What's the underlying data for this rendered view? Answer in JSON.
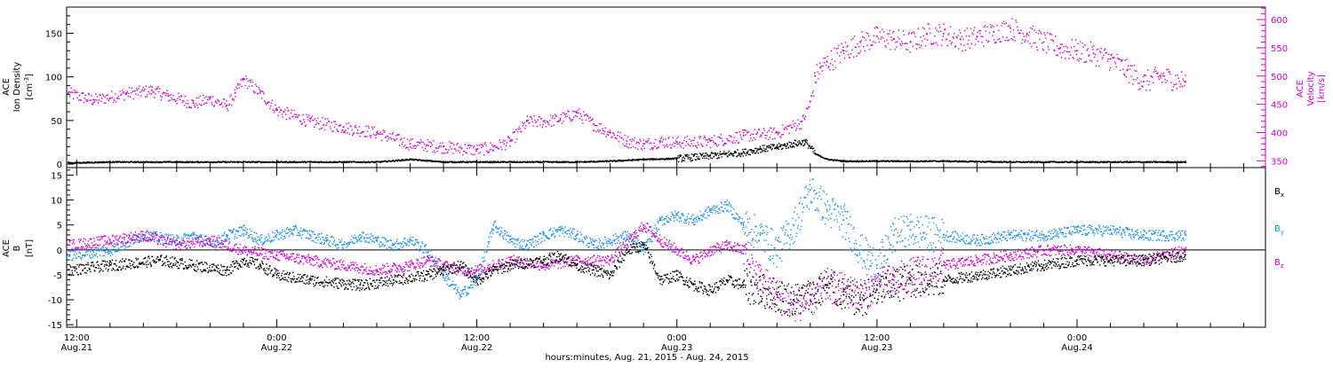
{
  "colors": {
    "density": "#000000",
    "velocity": "#d000d0",
    "bx": "#000000",
    "by": "#1e90e8",
    "bz": "#d000d0"
  },
  "footer_label": "hours:minutes, Aug. 21, 2015 - Aug. 24, 2015",
  "time_ticks": [
    {
      "time": "12:00",
      "date": "Aug.21",
      "hours": 0
    },
    {
      "time": "0:00",
      "date": "Aug.22",
      "hours": 12
    },
    {
      "time": "12:00",
      "date": "Aug.22",
      "hours": 24
    },
    {
      "time": "0:00",
      "date": "Aug.23",
      "hours": 36
    },
    {
      "time": "12:00",
      "date": "Aug.23",
      "hours": 48
    },
    {
      "time": "0:00",
      "date": "Aug.24",
      "hours": 60
    }
  ],
  "chart_data": [
    {
      "type": "scatter",
      "panel": "top",
      "ylabel_left": [
        "ACE",
        "Ion Density",
        "[cm^-3]"
      ],
      "ylabel_right": [
        "ACE",
        "Velocity",
        "[km/s]"
      ],
      "x_range_hours": [
        -0.6,
        71.3
      ],
      "ylim_left": [
        -4,
        180
      ],
      "ylim_right": [
        338,
        622
      ],
      "yticks_left": [
        0,
        50,
        100,
        150
      ],
      "yticks_right": [
        350,
        400,
        450,
        500,
        550,
        600
      ],
      "series": [
        {
          "axis": "left",
          "x": [
            -0.5,
            2,
            6,
            10,
            14,
            18,
            20,
            22,
            24,
            26,
            28,
            30,
            32,
            34,
            36,
            38,
            40,
            41,
            42,
            43,
            43.7,
            44.3,
            45,
            46,
            48,
            52,
            56,
            60,
            63,
            66.5
          ],
          "values": [
            2,
            3,
            3,
            3,
            3,
            3,
            6,
            3,
            3,
            3,
            3,
            3,
            4,
            6,
            7,
            10,
            14,
            18,
            20,
            24,
            26,
            12,
            6,
            4,
            4,
            4,
            3,
            3,
            3,
            3
          ]
        },
        {
          "axis": "right",
          "x": [
            -0.5,
            1,
            3,
            4.5,
            5.5,
            7,
            8,
            9,
            9.5,
            10,
            11,
            12,
            14,
            16,
            18,
            20,
            21,
            22,
            24,
            25,
            26,
            27,
            28,
            29,
            30,
            31,
            32,
            33,
            34,
            35,
            36,
            38,
            40,
            42,
            43.5,
            44,
            44.3,
            44.6,
            45,
            46,
            47,
            48,
            49,
            50,
            51,
            52,
            53,
            54,
            55,
            56,
            57,
            58,
            59,
            60,
            61,
            62,
            63,
            64,
            65,
            66.5
          ],
          "values": [
            470,
            458,
            470,
            475,
            465,
            452,
            460,
            448,
            470,
            495,
            470,
            440,
            420,
            410,
            400,
            380,
            378,
            375,
            370,
            375,
            385,
            420,
            420,
            425,
            435,
            415,
            400,
            385,
            380,
            385,
            383,
            385,
            395,
            400,
            420,
            455,
            500,
            515,
            525,
            545,
            560,
            570,
            565,
            560,
            575,
            575,
            565,
            570,
            578,
            585,
            575,
            560,
            550,
            545,
            540,
            530,
            510,
            490,
            500,
            490
          ]
        }
      ]
    },
    {
      "type": "scatter",
      "panel": "bottom",
      "ylabel_left": [
        "ACE",
        "B",
        "[nT]"
      ],
      "x_range_hours": [
        -0.6,
        71.3
      ],
      "ylim": [
        -15.5,
        16.5
      ],
      "yticks": [
        -15,
        -10,
        -5,
        0,
        5,
        10,
        15
      ],
      "zero_line": true,
      "legend_placement": "right",
      "series": [
        {
          "name": "Bx",
          "x": [
            -0.5,
            2,
            5,
            7,
            9,
            10,
            11,
            12,
            14,
            17,
            19,
            21,
            22,
            23,
            24,
            25,
            26,
            28,
            29,
            30,
            31,
            32,
            33,
            34,
            35,
            36,
            37,
            38,
            39,
            40,
            41,
            42,
            43,
            44,
            45,
            46,
            47,
            48,
            49,
            50,
            52,
            54,
            56,
            58,
            60,
            62,
            64,
            66.5
          ],
          "values": [
            -4,
            -3,
            -2,
            -3,
            -4,
            -2,
            -3,
            -5,
            -6,
            -7,
            -6,
            -5,
            -4,
            -3,
            -6,
            -4,
            -3,
            -2,
            -1,
            -3,
            -4,
            -5,
            0,
            1,
            -6,
            -5,
            -7,
            -8,
            -6,
            -7,
            -8,
            -9,
            -10,
            -9,
            -7,
            -9,
            -10,
            -8,
            -7,
            -6,
            -6,
            -5,
            -4,
            -3,
            -2,
            -2,
            -2,
            -1
          ]
        },
        {
          "name": "By",
          "x": [
            -0.5,
            2,
            4,
            6,
            7,
            8,
            9,
            10,
            11,
            12,
            13,
            14,
            15,
            16,
            17,
            18,
            19,
            20,
            21,
            22,
            23,
            24,
            25,
            26,
            27,
            28,
            29,
            30,
            31,
            32,
            33,
            34,
            35,
            36,
            37,
            38,
            39,
            40,
            41,
            42,
            43,
            44,
            45,
            46,
            47,
            48,
            49,
            50,
            52,
            54,
            56,
            58,
            60,
            62,
            64,
            66.5
          ],
          "values": [
            -1,
            0,
            3,
            2,
            3,
            1,
            3,
            4,
            2,
            3,
            4,
            3,
            2,
            1,
            3,
            2,
            1,
            2,
            0,
            -5,
            -9,
            -6,
            5,
            2,
            1,
            3,
            4,
            3,
            1,
            2,
            3,
            0,
            6,
            7,
            6,
            8,
            9,
            5,
            3,
            0,
            5,
            12,
            8,
            6,
            0,
            -3,
            3,
            4,
            3,
            2,
            3,
            3,
            4,
            4,
            3,
            3
          ]
        },
        {
          "name": "Bz",
          "x": [
            -0.5,
            2,
            4,
            6,
            8,
            10,
            12,
            14,
            16,
            18,
            20,
            21,
            22,
            23,
            24,
            25,
            26,
            28,
            30,
            32,
            34,
            35,
            36,
            37,
            38,
            39,
            40,
            41,
            42,
            43,
            44,
            45,
            46,
            47,
            48,
            49,
            50,
            52,
            54,
            56,
            58,
            60,
            62,
            64,
            66.5
          ],
          "values": [
            1,
            2,
            3,
            1,
            2,
            0,
            -1,
            -2,
            -3,
            -4,
            -3,
            -2,
            -3,
            -4,
            -4,
            -3,
            -2,
            -3,
            -2,
            -2,
            5,
            2,
            0,
            -2,
            0,
            1,
            0,
            -6,
            -9,
            -11,
            -10,
            -7,
            -8,
            -9,
            -7,
            -6,
            -5,
            -3,
            -2,
            -1,
            0,
            0,
            -1,
            -2,
            0
          ]
        }
      ]
    }
  ]
}
